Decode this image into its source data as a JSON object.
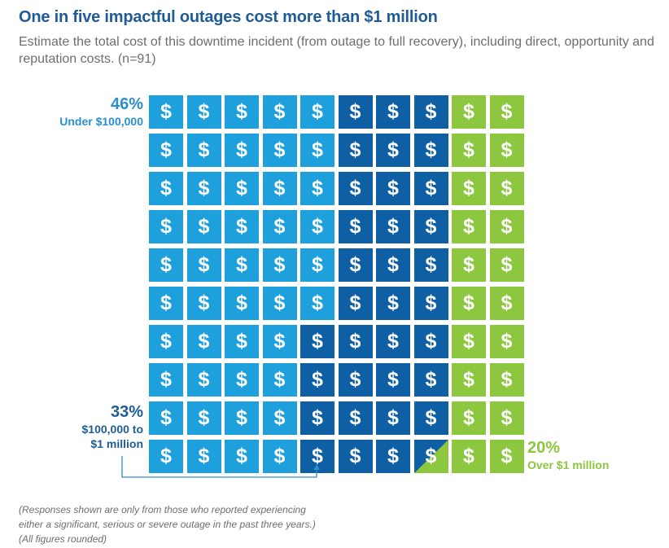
{
  "title": "One in five impactful outages cost more than $1 million",
  "subtitle": "Estimate the total cost of this downtime incident (from outage to full recovery), including direct, opportunity and reputation costs. (n=91)",
  "footnote": [
    "(Responses shown are only from those who reported experiencing",
    "either a significant, serious or severe outage in the past three years.)",
    "(All figures rounded)"
  ],
  "symbol": "$",
  "colors": {
    "under_100k": "#1ea0dc",
    "mid": "#0e5fa3",
    "over_1m": "#8dc63f",
    "title": "#1f5c97"
  },
  "chart_data": {
    "type": "waffle",
    "total_cells": 100,
    "rows": 10,
    "columns": 10,
    "series": [
      {
        "name": "Under $100,000",
        "percent": "46%",
        "value": 46,
        "color_key": "under_100k"
      },
      {
        "name": "$100,000 to $1 million",
        "percent": "33%",
        "value": 33,
        "color_key": "mid"
      },
      {
        "name": "Over $1 million",
        "percent": "20%",
        "value": 20,
        "color_key": "over_1m"
      }
    ],
    "labels": {
      "under": {
        "pct": "46%",
        "text": "Under $100,000"
      },
      "mid": {
        "pct": "33%",
        "line1": "$100,000 to",
        "line2": "$1 million"
      },
      "over": {
        "pct": "20%",
        "text": "Over $1 million"
      }
    }
  }
}
